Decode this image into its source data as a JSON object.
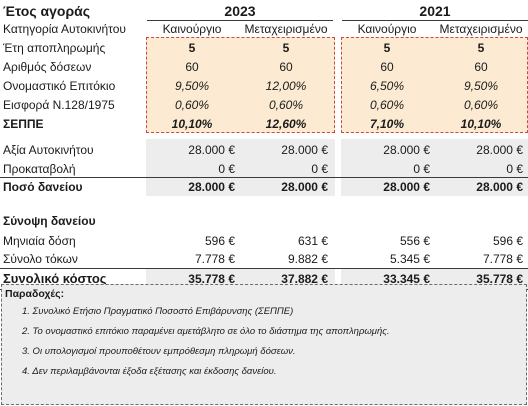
{
  "header": {
    "title_label": "Έτος αγοράς",
    "year_2023": "2023",
    "year_2021": "2021",
    "category_label": "Κατηγορία Αυτοκινήτου",
    "new_label": "Καινούργιο",
    "used_label": "Μεταχειρισμένο"
  },
  "params": {
    "rows": [
      {
        "label": "Έτη αποπληρωμής",
        "v": [
          "5",
          "5",
          "5",
          "5"
        ]
      },
      {
        "label": "Αριθμός δόσεων",
        "v": [
          "60",
          "60",
          "60",
          "60"
        ]
      },
      {
        "label": "Ονομαστικό Επιτόκιο",
        "v": [
          "9,50%",
          "12,00%",
          "6,50%",
          "9,50%"
        ]
      },
      {
        "label": "Εισφορά Ν.128/1975",
        "v": [
          "0,60%",
          "0,60%",
          "0,60%",
          "0,60%"
        ]
      },
      {
        "label": "ΣΕΠΠΕ",
        "v": [
          "10,10%",
          "12,60%",
          "7,10%",
          "10,10%"
        ]
      }
    ]
  },
  "values": {
    "rows": [
      {
        "label": "Αξία Αυτοκινήτου",
        "v": [
          "28.000 €",
          "28.000 €",
          "28.000 €",
          "28.000 €"
        ]
      },
      {
        "label": "Προκαταβολή",
        "v": [
          "0 €",
          "0 €",
          "0 €",
          "0 €"
        ]
      },
      {
        "label": "Ποσό δανείου",
        "v": [
          "28.000 €",
          "28.000 €",
          "28.000 €",
          "28.000 €"
        ]
      }
    ]
  },
  "summary": {
    "title": "Σύνοψη δανείου",
    "rows": [
      {
        "label": "Μηνιαία δόση",
        "v": [
          "596 €",
          "631 €",
          "556 €",
          "596 €"
        ]
      },
      {
        "label": "Σύνολο τόκων",
        "v": [
          "7.778 €",
          "9.882 €",
          "5.345 €",
          "7.778 €"
        ]
      },
      {
        "label": "Συνολικό κόστος",
        "v": [
          "35.778 €",
          "37.882 €",
          "33.345 €",
          "35.778 €"
        ]
      }
    ]
  },
  "notes": {
    "title": "Παραδοχές:",
    "items": [
      "1. Συνολικό Ετήσιο Πραγματικό Ποσοστό Επιβάρυνσης (ΣΕΠΠΕ)",
      "2. Το ονομαστικό επιτόκιο παραμένει αμετάβλητο σε όλο το διάστημα της αποπληρωμής.",
      "3. Οι υπολογισμοί προυποθέτουν εμπρόθεσμη πληρωμή δόσεων.",
      "4. Δεν περιλαμβάνονται έξοδα εξέτασης και έκδοσης δανείου."
    ]
  },
  "colors": {
    "highlight_fill": "#fcebd2",
    "highlight_border": "#c94b3f",
    "gray_fill": "#ededed"
  }
}
